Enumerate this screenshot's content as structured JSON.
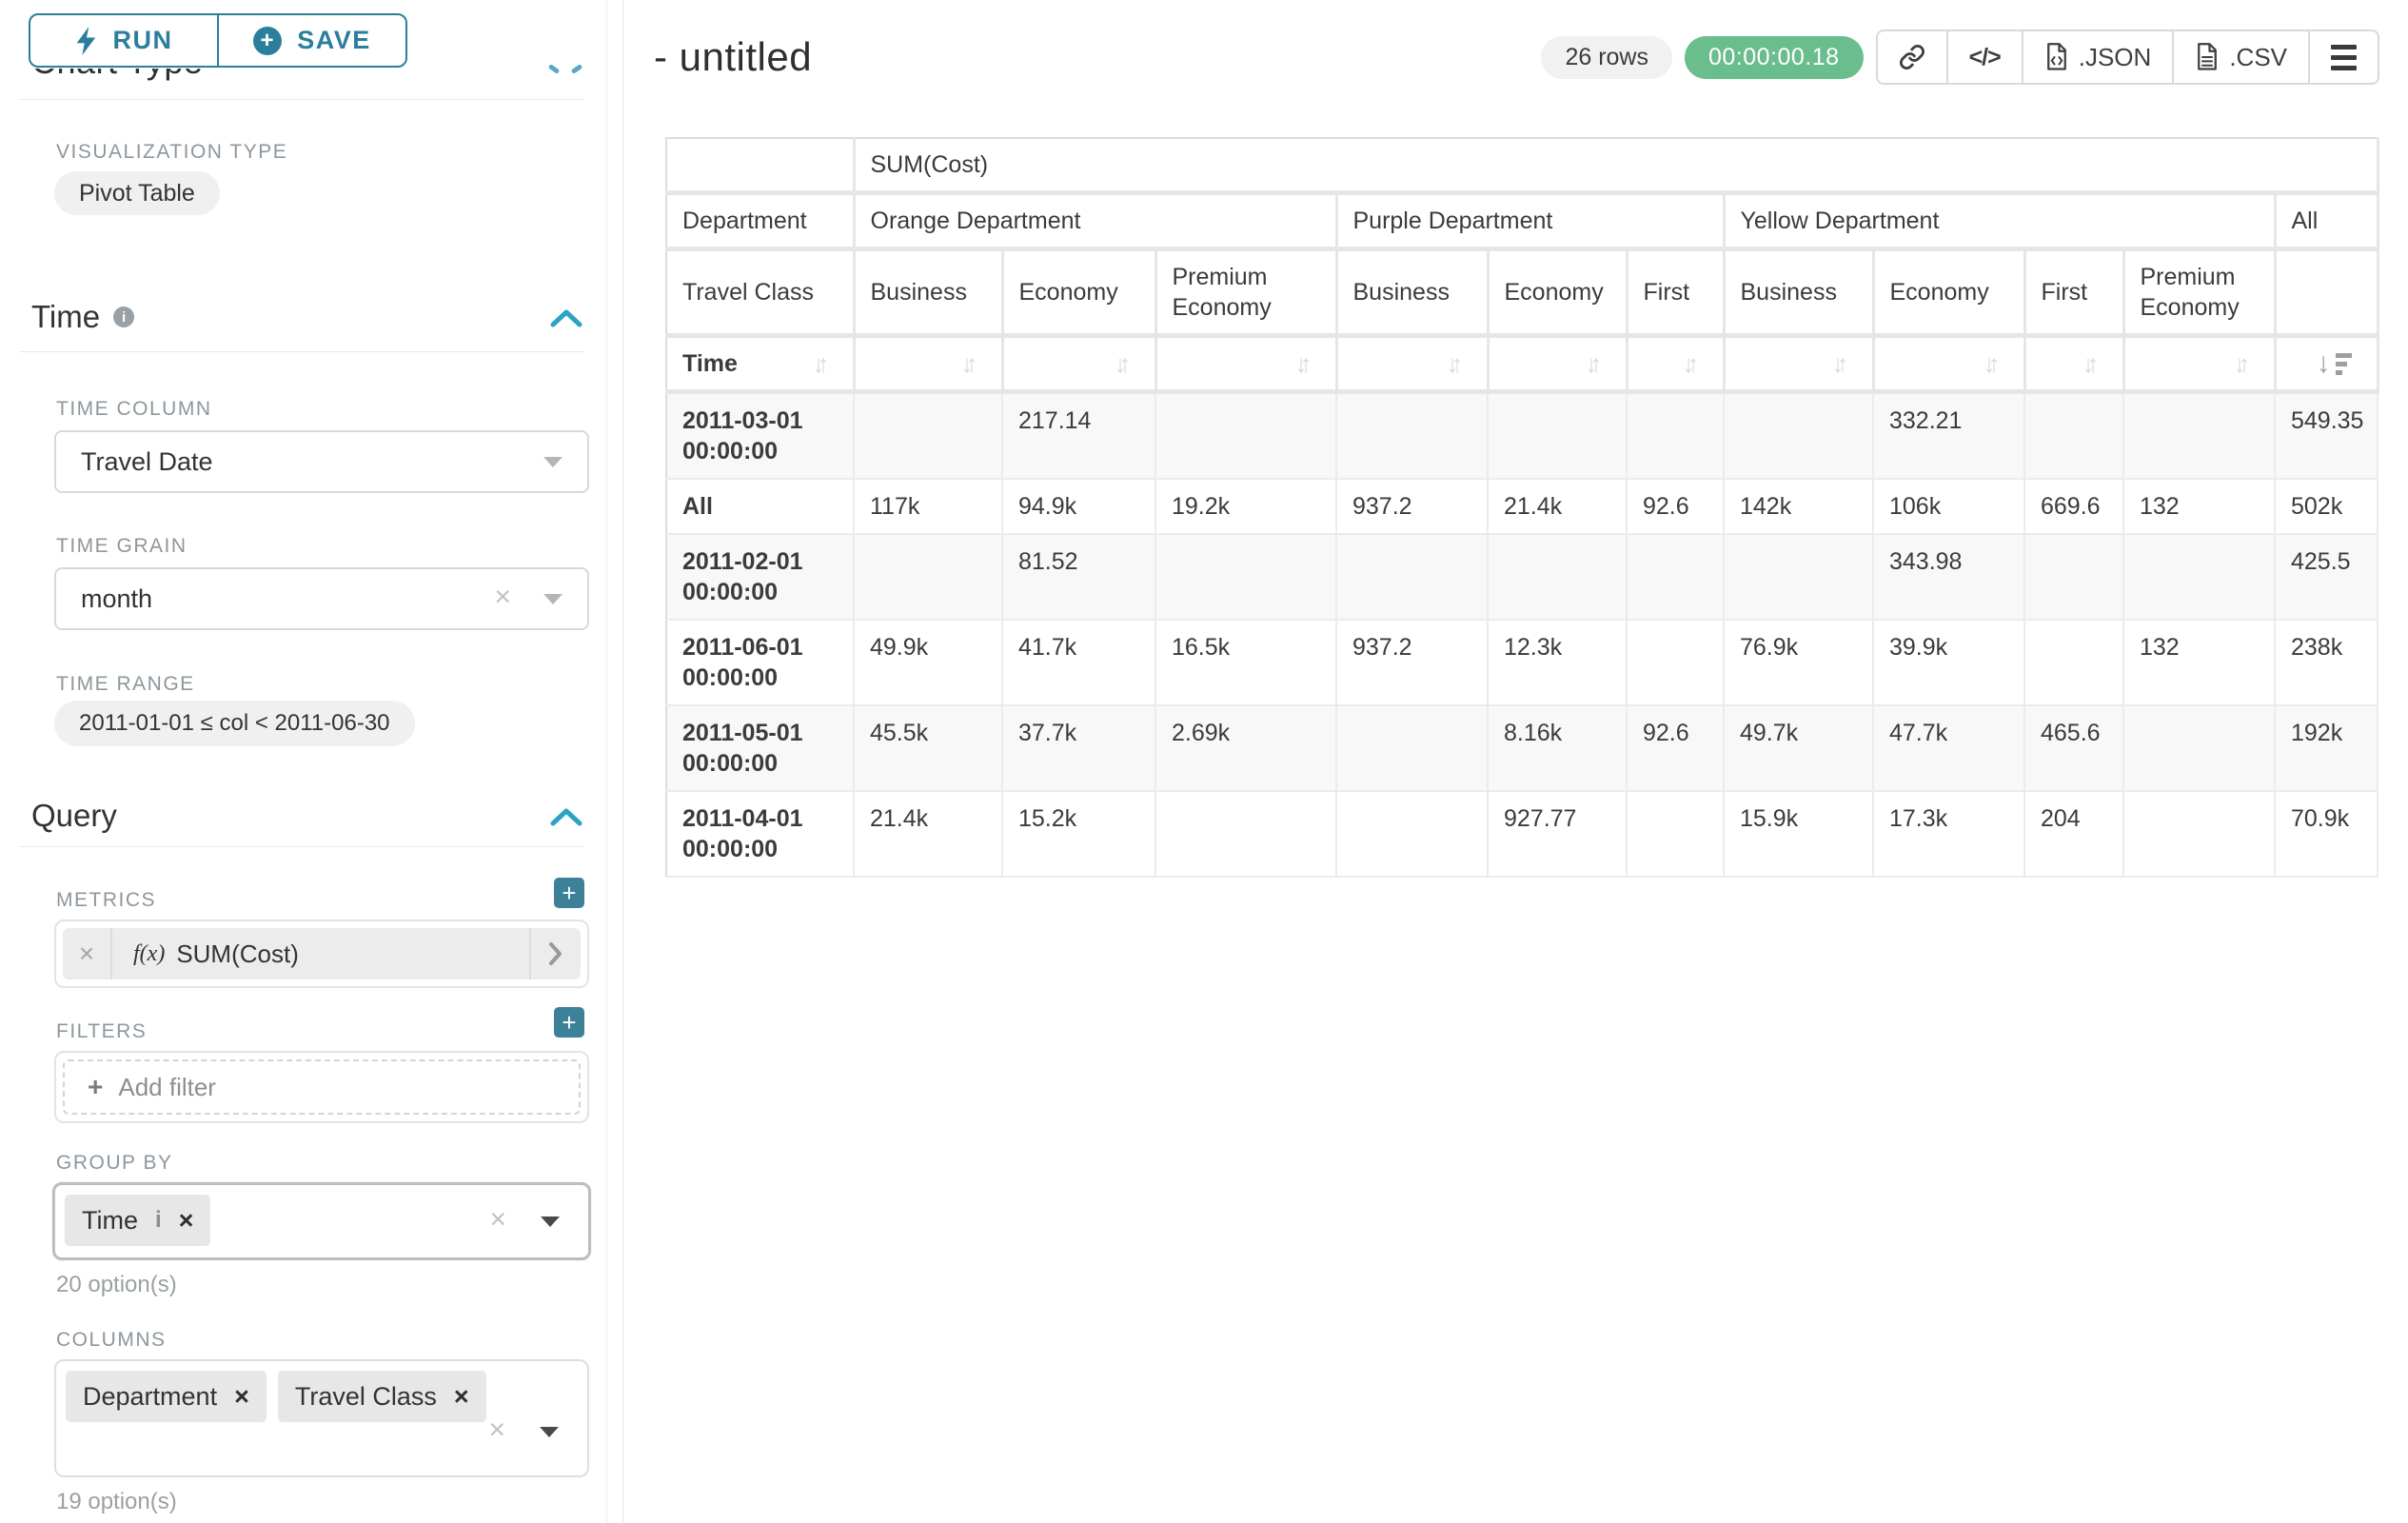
{
  "accent_color": "#20a7c9",
  "button_teal": "#2b7f9d",
  "timer_green": "#6abd8c",
  "sidebar": {
    "run_button": "RUN",
    "save_button": "SAVE",
    "chart_type_title": "Chart Type",
    "viz_type_label": "VISUALIZATION TYPE",
    "viz_type_value": "Pivot Table",
    "time_section": {
      "title": "Time",
      "time_column_label": "TIME COLUMN",
      "time_column_value": "Travel Date",
      "time_grain_label": "TIME GRAIN",
      "time_grain_value": "month",
      "time_range_label": "TIME RANGE",
      "time_range_value": "2011-01-01 ≤ col < 2011-06-30"
    },
    "query_section": {
      "title": "Query",
      "metrics_label": "METRICS",
      "metric_prefix": "f(x)",
      "metric_value": "SUM(Cost)",
      "filters_label": "FILTERS",
      "add_filter_label": "Add filter",
      "group_by_label": "GROUP BY",
      "group_by_values": [
        "Time"
      ],
      "group_by_options_hint": "20 option(s)",
      "columns_label": "COLUMNS",
      "columns_values": [
        "Department",
        "Travel Class"
      ],
      "columns_options_hint": "19 option(s)"
    }
  },
  "main": {
    "title": "- untitled",
    "row_count_badge": "26 rows",
    "query_timer": "00:00:00.18",
    "export_json_label": ".JSON",
    "export_csv_label": ".CSV"
  },
  "pivot": {
    "metric_header": "SUM(Cost)",
    "department_axis_label": "Department",
    "travel_class_axis_label": "Travel Class",
    "time_axis_label": "Time",
    "department_groups": [
      {
        "label": "Orange Department",
        "span": 3
      },
      {
        "label": "Purple Department",
        "span": 3
      },
      {
        "label": "Yellow Department",
        "span": 4
      },
      {
        "label": "All",
        "span": 1
      }
    ],
    "travel_classes": [
      "Business",
      "Economy",
      "Premium Economy",
      "Business",
      "Economy",
      "First",
      "Business",
      "Economy",
      "First",
      "Premium Economy",
      ""
    ],
    "sorted_column": "All",
    "rows": [
      {
        "label": "2011-03-01 00:00:00",
        "values": [
          "",
          "217.14",
          "",
          "",
          "",
          "",
          "",
          "332.21",
          "",
          "",
          "549.35"
        ]
      },
      {
        "label": "All",
        "values": [
          "117k",
          "94.9k",
          "19.2k",
          "937.2",
          "21.4k",
          "92.6",
          "142k",
          "106k",
          "669.6",
          "132",
          "502k"
        ]
      },
      {
        "label": "2011-02-01 00:00:00",
        "values": [
          "",
          "81.52",
          "",
          "",
          "",
          "",
          "",
          "343.98",
          "",
          "",
          "425.5"
        ]
      },
      {
        "label": "2011-06-01 00:00:00",
        "values": [
          "49.9k",
          "41.7k",
          "16.5k",
          "937.2",
          "12.3k",
          "",
          "76.9k",
          "39.9k",
          "",
          "132",
          "238k"
        ]
      },
      {
        "label": "2011-05-01 00:00:00",
        "values": [
          "45.5k",
          "37.7k",
          "2.69k",
          "",
          "8.16k",
          "92.6",
          "49.7k",
          "47.7k",
          "465.6",
          "",
          "192k"
        ]
      },
      {
        "label": "2011-04-01 00:00:00",
        "values": [
          "21.4k",
          "15.2k",
          "",
          "",
          "927.77",
          "",
          "15.9k",
          "17.3k",
          "204",
          "",
          "70.9k"
        ]
      }
    ]
  }
}
